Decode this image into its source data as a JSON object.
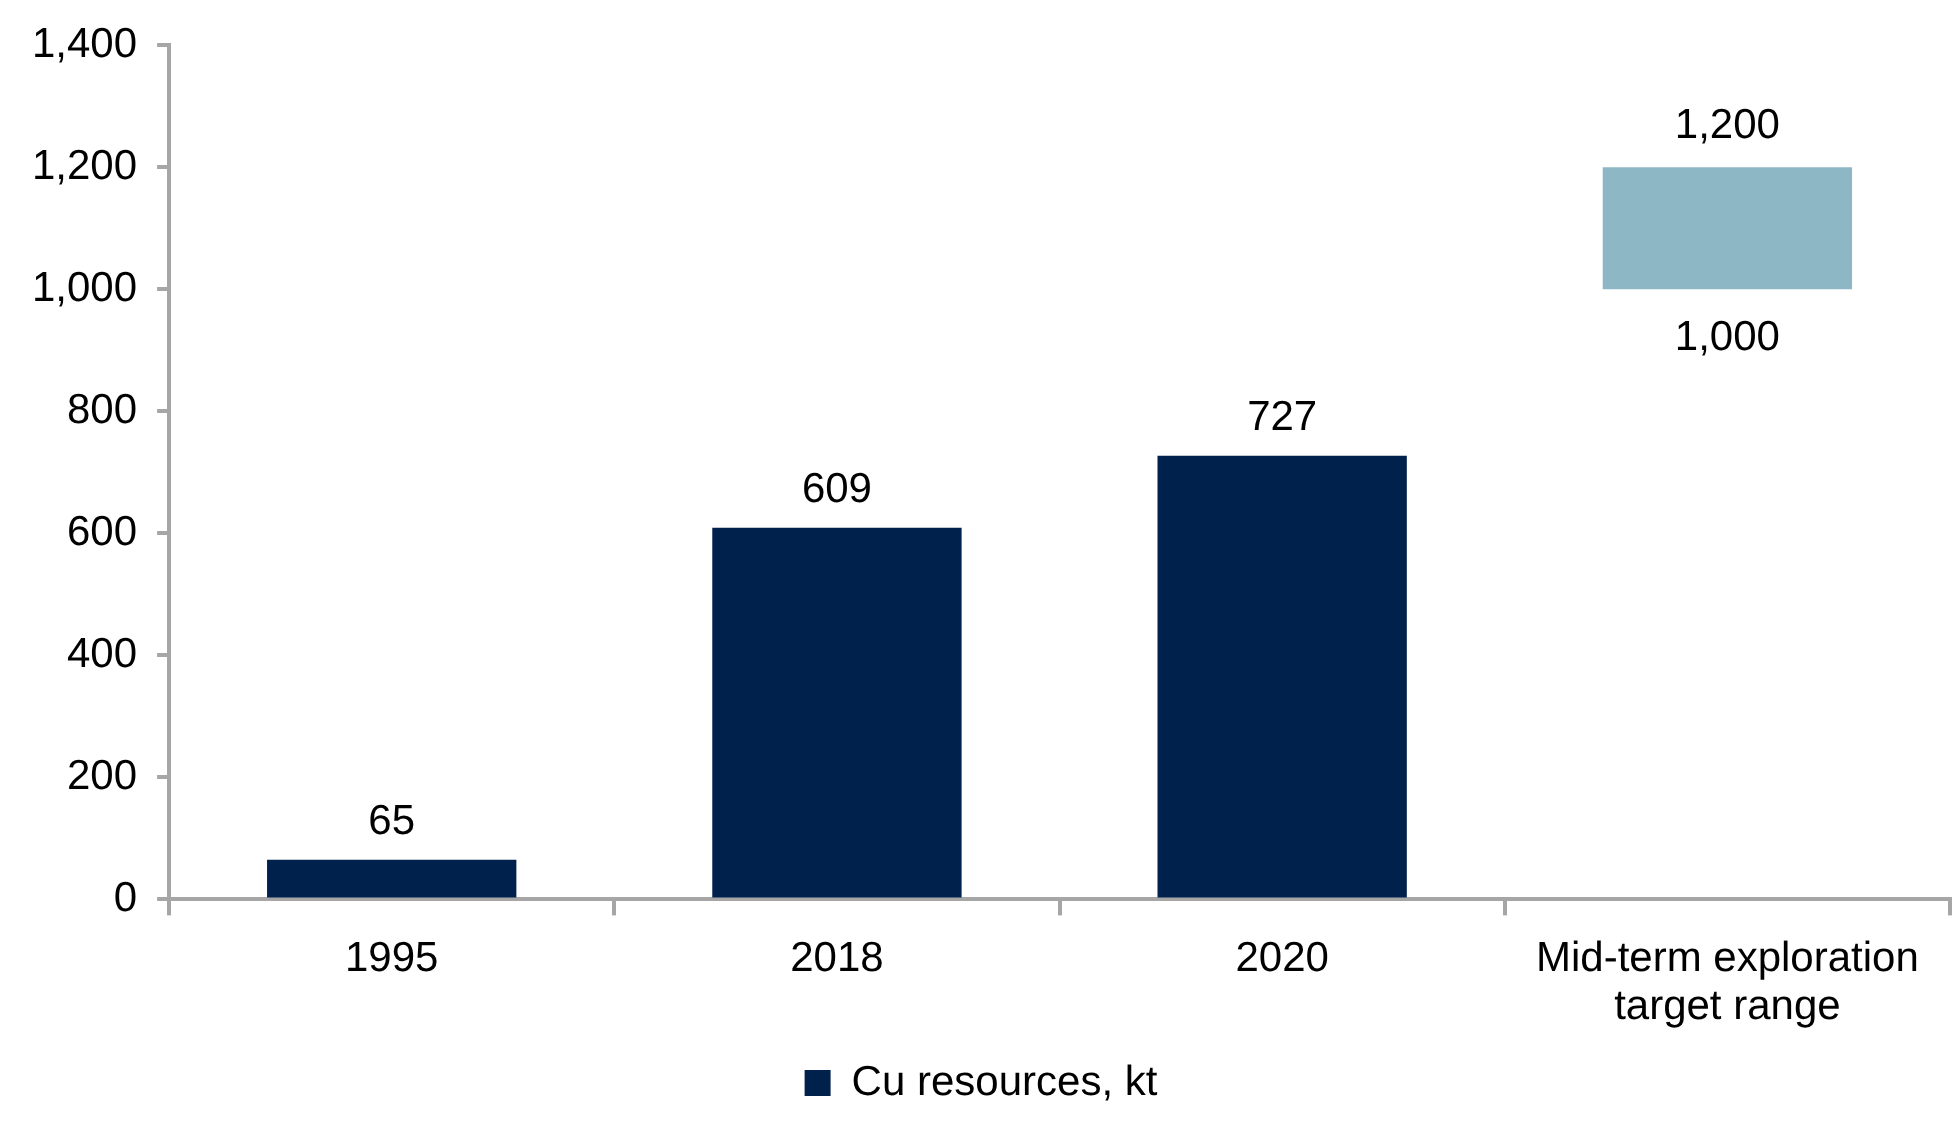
{
  "chart_data": {
    "type": "bar",
    "categories": [
      "1995",
      "2018",
      "2020",
      "Mid-term exploration target range"
    ],
    "series": [
      {
        "name": "Cu resources, kt",
        "color": "#01214d",
        "colors": [
          "#01214d",
          "#01214d",
          "#01214d",
          "#8eb7c5"
        ],
        "values": [
          65,
          609,
          727,
          200
        ],
        "base": [
          0,
          0,
          0,
          1000
        ],
        "value_labels": [
          "65",
          "609",
          "727",
          null
        ]
      }
    ],
    "ylim": [
      0,
      1400
    ],
    "yticks": [
      0,
      200,
      400,
      600,
      800,
      {
        "value": 1000,
        "label": "1,000"
      },
      {
        "value": 1200,
        "label": "1,200"
      },
      {
        "value": 1400,
        "label": "1,400"
      }
    ],
    "annotations": [
      {
        "text": "1,200",
        "x": "Mid-term exploration target range",
        "y": 1200
      },
      {
        "text": "1,000",
        "x": "Mid-term exploration target range",
        "y": 1000
      }
    ],
    "legend": "bottom"
  }
}
